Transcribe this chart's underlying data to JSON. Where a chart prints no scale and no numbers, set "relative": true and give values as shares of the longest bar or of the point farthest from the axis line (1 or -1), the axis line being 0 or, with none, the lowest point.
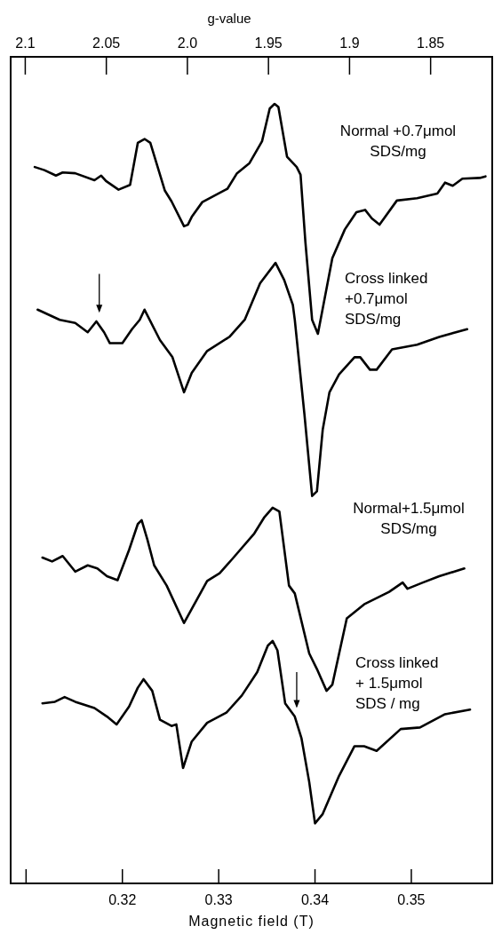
{
  "chart_data": {
    "type": "line",
    "relative": true,
    "xlabel": "Magnetic field (T)",
    "x2label": "g-value",
    "xlim": [
      0.3084,
      0.3584
    ],
    "xticks": [
      {
        "value": 0.31,
        "label": null
      },
      {
        "value": 0.32,
        "label": "0.32"
      },
      {
        "value": 0.33,
        "label": "0.33"
      },
      {
        "value": 0.34,
        "label": "0.34"
      },
      {
        "value": 0.35,
        "label": "0.35"
      }
    ],
    "x2lim": [
      2.109,
      1.812
    ],
    "x2ticks": [
      2.1,
      2.05,
      {
        "value": 2,
        "label": "2.0"
      },
      1.95,
      1.9,
      1.85
    ],
    "series": [
      {
        "name": "Normal +0.7μmol\nSDS/mg",
        "color": "#000000",
        "x": [
          0.3109,
          0.3119,
          0.3131,
          0.3138,
          0.3151,
          0.3171,
          0.3178,
          0.3183,
          0.3196,
          0.3208,
          0.3216,
          0.3223,
          0.3229,
          0.3244,
          0.3251,
          0.3264,
          0.3268,
          0.3272,
          0.3283,
          0.3309,
          0.3319,
          0.3332,
          0.3345,
          0.3353,
          0.3358,
          0.3362,
          0.3371,
          0.3381,
          0.3385,
          0.339,
          0.3397,
          0.3403,
          0.3418,
          0.3431,
          0.3443,
          0.3452,
          0.3459,
          0.3467,
          0.3485,
          0.3506,
          0.3527,
          0.3535,
          0.3543,
          0.3553,
          0.3571,
          0.3577
        ],
        "values": [
          0.919,
          0.915,
          0.908,
          0.912,
          0.911,
          0.902,
          0.908,
          0.901,
          0.89,
          0.896,
          0.95,
          0.955,
          0.95,
          0.889,
          0.875,
          0.843,
          0.845,
          0.855,
          0.874,
          0.891,
          0.911,
          0.924,
          0.952,
          0.994,
          1.0,
          0.996,
          0.932,
          0.919,
          0.909,
          0.823,
          0.723,
          0.705,
          0.802,
          0.839,
          0.861,
          0.864,
          0.853,
          0.845,
          0.876,
          0.879,
          0.885,
          0.899,
          0.895,
          0.904,
          0.905,
          0.907
        ]
      },
      {
        "name": "Cross linked\n+0.7μmol\nSDS/mg",
        "color": "#000000",
        "x": [
          0.3112,
          0.3135,
          0.3151,
          0.3164,
          0.3173,
          0.3181,
          0.3187,
          0.32,
          0.321,
          0.3218,
          0.3223,
          0.3239,
          0.3252,
          0.3264,
          0.3272,
          0.3288,
          0.3311,
          0.3327,
          0.3343,
          0.3359,
          0.3368,
          0.3377,
          0.3379,
          0.3389,
          0.3397,
          0.3402,
          0.3408,
          0.3415,
          0.3425,
          0.3441,
          0.3447,
          0.3457,
          0.3464,
          0.348,
          0.3506,
          0.3529,
          0.3558
        ],
        "values": [
          0.736,
          0.723,
          0.719,
          0.707,
          0.721,
          0.707,
          0.693,
          0.693,
          0.711,
          0.723,
          0.736,
          0.697,
          0.675,
          0.63,
          0.655,
          0.683,
          0.701,
          0.723,
          0.77,
          0.796,
          0.774,
          0.742,
          0.723,
          0.602,
          0.497,
          0.503,
          0.582,
          0.63,
          0.653,
          0.675,
          0.675,
          0.659,
          0.659,
          0.685,
          0.691,
          0.701,
          0.711
        ]
      },
      {
        "name": "Normal+1.5μmol\nSDS/mg",
        "color": "#000000",
        "x": [
          0.3117,
          0.3127,
          0.3138,
          0.3151,
          0.3164,
          0.3174,
          0.3184,
          0.3195,
          0.3207,
          0.3216,
          0.322,
          0.3226,
          0.3233,
          0.3246,
          0.3264,
          0.3272,
          0.3288,
          0.3301,
          0.3314,
          0.3337,
          0.3347,
          0.3356,
          0.3363,
          0.3373,
          0.3379,
          0.3394,
          0.3402,
          0.3412,
          0.3418,
          0.3433,
          0.3451,
          0.3477,
          0.3491,
          0.3496,
          0.3512,
          0.3529,
          0.3555
        ],
        "values": [
          0.418,
          0.413,
          0.42,
          0.4,
          0.408,
          0.404,
          0.394,
          0.389,
          0.428,
          0.461,
          0.466,
          0.441,
          0.408,
          0.382,
          0.334,
          0.352,
          0.388,
          0.398,
          0.416,
          0.449,
          0.469,
          0.482,
          0.477,
          0.382,
          0.372,
          0.295,
          0.275,
          0.247,
          0.255,
          0.34,
          0.358,
          0.374,
          0.386,
          0.378,
          0.386,
          0.394,
          0.404
        ]
      },
      {
        "name": "Cross linked\n+ 1.5μmol\nSDS / mg",
        "color": "#000000",
        "x": [
          0.3117,
          0.313,
          0.314,
          0.3151,
          0.3171,
          0.3184,
          0.3194,
          0.3207,
          0.3216,
          0.3222,
          0.3231,
          0.3239,
          0.3251,
          0.3256,
          0.3263,
          0.3272,
          0.3288,
          0.3308,
          0.3324,
          0.334,
          0.3351,
          0.3356,
          0.3361,
          0.3369,
          0.3379,
          0.3386,
          0.3394,
          0.34,
          0.3408,
          0.3425,
          0.3441,
          0.3451,
          0.3464,
          0.3489,
          0.3509,
          0.3535,
          0.3561
        ],
        "values": [
          0.231,
          0.233,
          0.239,
          0.233,
          0.225,
          0.214,
          0.204,
          0.227,
          0.251,
          0.262,
          0.247,
          0.21,
          0.202,
          0.204,
          0.148,
          0.182,
          0.206,
          0.219,
          0.241,
          0.271,
          0.305,
          0.311,
          0.299,
          0.231,
          0.214,
          0.186,
          0.13,
          0.077,
          0.089,
          0.138,
          0.176,
          0.176,
          0.17,
          0.198,
          0.2,
          0.217,
          0.223
        ]
      }
    ]
  }
}
